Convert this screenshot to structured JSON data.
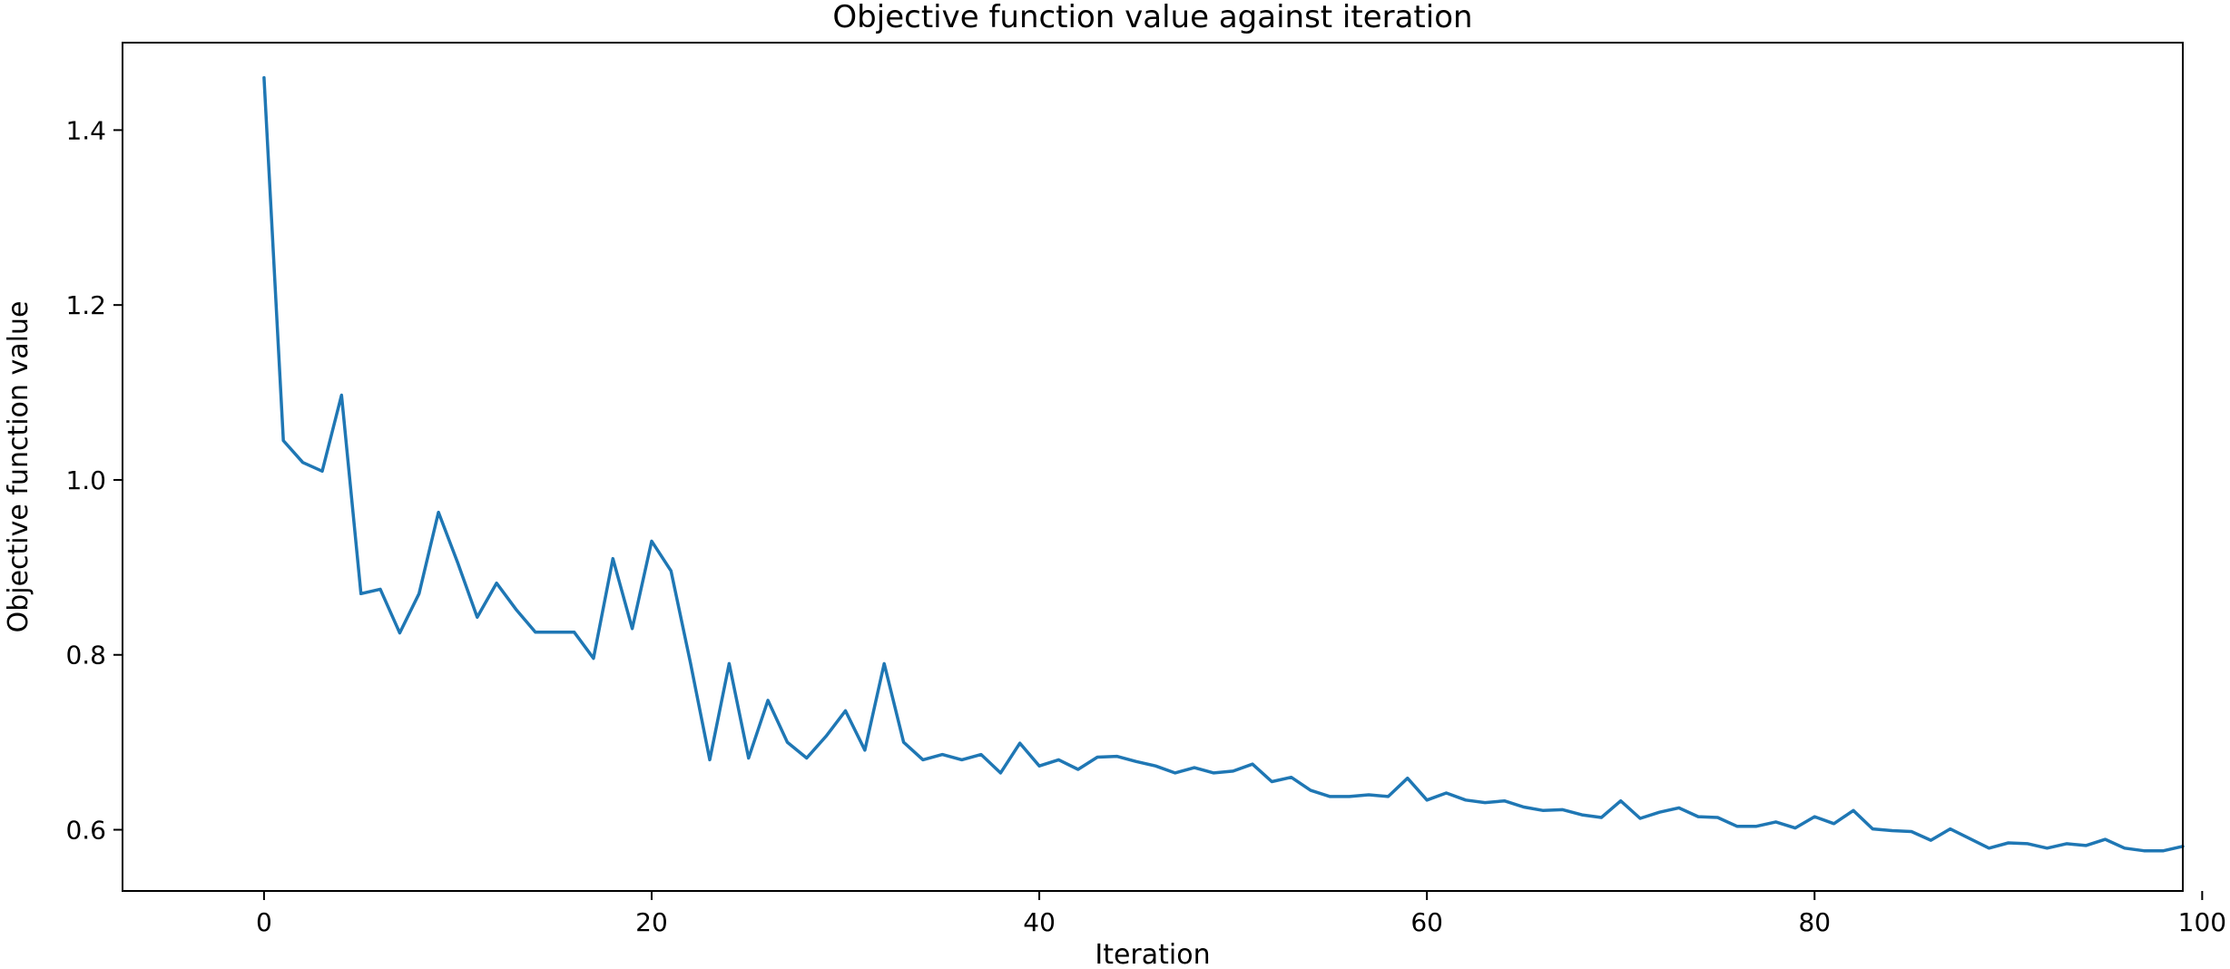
{
  "chart_data": {
    "type": "line",
    "title": "Objective function value against iteration",
    "xlabel": "Iteration",
    "ylabel": "Objective function value",
    "xlim": [
      -7.3,
      99
    ],
    "ylim": [
      0.53,
      1.5
    ],
    "xticks": [
      0,
      20,
      40,
      60,
      80,
      100
    ],
    "xtick_labels": [
      "0",
      "20",
      "40",
      "60",
      "80",
      "100"
    ],
    "yticks": [
      0.6,
      0.8,
      1.0,
      1.2,
      1.4
    ],
    "ytick_labels": [
      "0.6",
      "0.8",
      "1.0",
      "1.2",
      "1.4"
    ],
    "grid": false,
    "legend": "none",
    "series": [
      {
        "color": "#1f77b4",
        "x": [
          0,
          1,
          2,
          3,
          4,
          5,
          6,
          7,
          8,
          9,
          10,
          11,
          12,
          13,
          14,
          15,
          16,
          17,
          18,
          19,
          20,
          21,
          22,
          23,
          24,
          25,
          26,
          27,
          28,
          29,
          30,
          31,
          32,
          33,
          34,
          35,
          36,
          37,
          38,
          39,
          40,
          41,
          42,
          43,
          44,
          45,
          46,
          47,
          48,
          49,
          50,
          51,
          52,
          53,
          54,
          55,
          56,
          57,
          58,
          59,
          60,
          61,
          62,
          63,
          64,
          65,
          66,
          67,
          68,
          69,
          70,
          71,
          72,
          73,
          74,
          75,
          76,
          77,
          78,
          79,
          80,
          81,
          82,
          83,
          84,
          85,
          86,
          87,
          88,
          89,
          90,
          91,
          92,
          93,
          94,
          95,
          96,
          97,
          98,
          99
        ],
        "values": [
          1.46,
          1.045,
          1.02,
          1.01,
          1.097,
          0.87,
          0.875,
          0.825,
          0.87,
          0.963,
          0.905,
          0.843,
          0.882,
          0.852,
          0.826,
          0.826,
          0.826,
          0.796,
          0.91,
          0.83,
          0.93,
          0.896,
          0.791,
          0.68,
          0.79,
          0.682,
          0.748,
          0.7,
          0.682,
          0.707,
          0.736,
          0.691,
          0.79,
          0.7,
          0.68,
          0.686,
          0.68,
          0.686,
          0.665,
          0.699,
          0.673,
          0.68,
          0.669,
          0.683,
          0.684,
          0.678,
          0.673,
          0.665,
          0.671,
          0.665,
          0.667,
          0.675,
          0.655,
          0.66,
          0.645,
          0.638,
          0.638,
          0.64,
          0.638,
          0.659,
          0.634,
          0.642,
          0.634,
          0.631,
          0.633,
          0.626,
          0.622,
          0.623,
          0.617,
          0.614,
          0.633,
          0.613,
          0.62,
          0.625,
          0.615,
          0.614,
          0.604,
          0.604,
          0.609,
          0.602,
          0.615,
          0.607,
          0.622,
          0.601,
          0.599,
          0.598,
          0.588,
          0.601,
          0.59,
          0.579,
          0.585,
          0.584,
          0.579,
          0.584,
          0.582,
          0.589,
          0.579,
          0.576,
          0.576,
          0.581
        ]
      }
    ]
  }
}
